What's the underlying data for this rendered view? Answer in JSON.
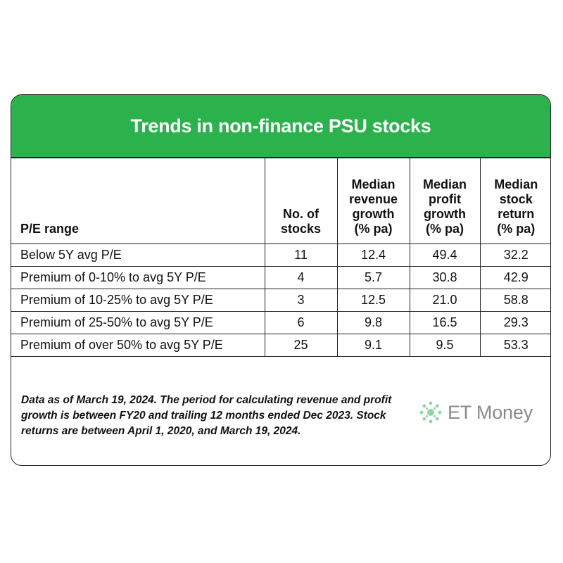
{
  "title": "Trends in non-finance PSU stocks",
  "colors": {
    "header_bg": "#2bb24c",
    "header_text": "#ffffff",
    "border": "#222222",
    "brand_text": "#8a8a8a",
    "brand_icon": "#8fd6a4"
  },
  "chart_data": {
    "type": "table",
    "title": "Trends in non-finance PSU stocks",
    "columns": [
      "P/E range",
      "No. of stocks",
      "Median revenue growth (% pa)",
      "Median profit growth (% pa)",
      "Median stock return (% pa)"
    ],
    "rows": [
      {
        "pe_range": "Below 5Y avg P/E",
        "stocks": "11",
        "revenue_growth": "12.4",
        "profit_growth": "49.4",
        "stock_return": "32.2"
      },
      {
        "pe_range": "Premium of 0-10% to avg 5Y P/E",
        "stocks": "4",
        "revenue_growth": "5.7",
        "profit_growth": "30.8",
        "stock_return": "42.9"
      },
      {
        "pe_range": "Premium of 10-25% to avg 5Y P/E",
        "stocks": "3",
        "revenue_growth": "12.5",
        "profit_growth": "21.0",
        "stock_return": "58.8"
      },
      {
        "pe_range": "Premium of 25-50% to avg 5Y P/E",
        "stocks": "6",
        "revenue_growth": "9.8",
        "profit_growth": "16.5",
        "stock_return": "29.3"
      },
      {
        "pe_range": "Premium of over 50% to avg 5Y P/E",
        "stocks": "25",
        "revenue_growth": "9.1",
        "profit_growth": "9.5",
        "stock_return": "53.3"
      }
    ]
  },
  "footnote": "Data as of March 19, 2024. The period for calculating revenue and profit growth is between FY20 and trailing 12 months ended Dec 2023. Stock returns are between April 1, 2020, and March 19, 2024.",
  "brand": {
    "name": "ET Money",
    "icon": "et-money-logo-icon"
  }
}
